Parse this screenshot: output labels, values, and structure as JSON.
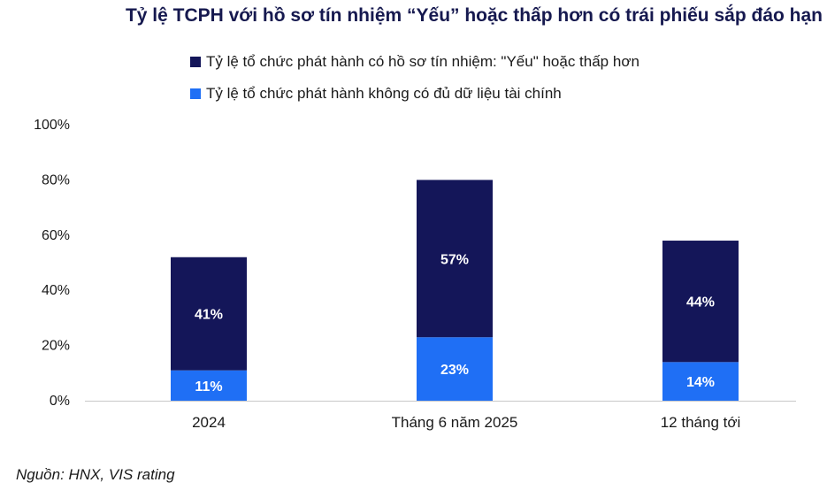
{
  "source": "Nguồn: HNX, VIS rating",
  "chart_data": {
    "type": "bar",
    "stacked": true,
    "title": "Tỷ lệ TCPH với hồ sơ tín nhiệm “Yếu” hoặc thấp hơn có trái phiếu sắp đáo hạn",
    "categories": [
      "2024",
      "Tháng 6 năm 2025",
      "12 tháng tới"
    ],
    "series": [
      {
        "name": "Tỷ lệ tổ chức phát hành không có đủ dữ liệu tài chính",
        "color": "#1f6ff5",
        "values": [
          11,
          23,
          14
        ],
        "labels": [
          "11%",
          "23%",
          "14%"
        ]
      },
      {
        "name": "Tỷ lệ tổ chức phát hành có hồ sơ tín nhiệm: \"Yếu\" hoặc thấp hơn",
        "color": "#141659",
        "values": [
          41,
          57,
          44
        ],
        "labels": [
          "41%",
          "57%",
          "44%"
        ]
      }
    ],
    "legend_order": [
      1,
      0
    ],
    "legend_position": "top",
    "ylim": [
      0,
      100
    ],
    "yticks": [
      0,
      20,
      40,
      60,
      80,
      100
    ],
    "ytick_labels": [
      "0%",
      "20%",
      "40%",
      "60%",
      "80%",
      "100%"
    ],
    "grid": false
  }
}
